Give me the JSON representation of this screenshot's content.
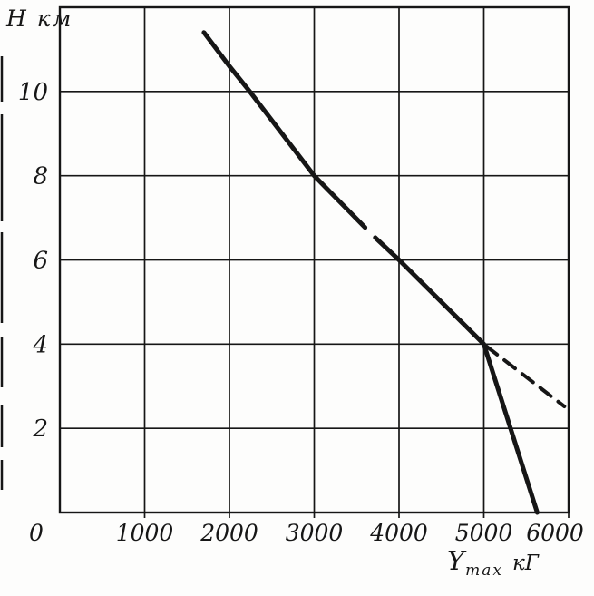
{
  "figure": {
    "paper_color": "#fdfdfc",
    "ink_color": "#161616"
  },
  "chart_data": {
    "type": "line",
    "ylabel": "Н км",
    "xlabel_symbol": "Y",
    "xlabel_subscript": "max",
    "xlabel_unit": "кГ",
    "xlim": [
      0,
      6000
    ],
    "ylim": [
      0,
      12
    ],
    "grid": true,
    "legend": "none",
    "x_ticks": [
      0,
      1000,
      2000,
      3000,
      4000,
      5000,
      6000
    ],
    "x_tick_labels": [
      "0",
      "1000",
      "2000",
      "3000",
      "4000",
      "5000",
      "6000"
    ],
    "y_ticks": [
      2,
      4,
      6,
      8,
      10
    ],
    "y_tick_labels": [
      "2",
      "4",
      "6",
      "8",
      "10"
    ],
    "series": [
      {
        "name": "main-curve-upper",
        "style": "solid",
        "points": [
          [
            1700,
            11.4
          ],
          [
            2000,
            10.6
          ],
          [
            2240,
            10.0
          ],
          [
            3000,
            8.0
          ],
          [
            3600,
            6.77
          ]
        ]
      },
      {
        "name": "main-curve-lower",
        "style": "solid",
        "points": [
          [
            3720,
            6.53
          ],
          [
            4000,
            6.0
          ],
          [
            5000,
            4.0
          ],
          [
            5630,
            0.0
          ]
        ]
      },
      {
        "name": "dashed-branch",
        "style": "dashed",
        "points": [
          [
            5030,
            3.95
          ],
          [
            5950,
            2.52
          ]
        ]
      }
    ]
  }
}
